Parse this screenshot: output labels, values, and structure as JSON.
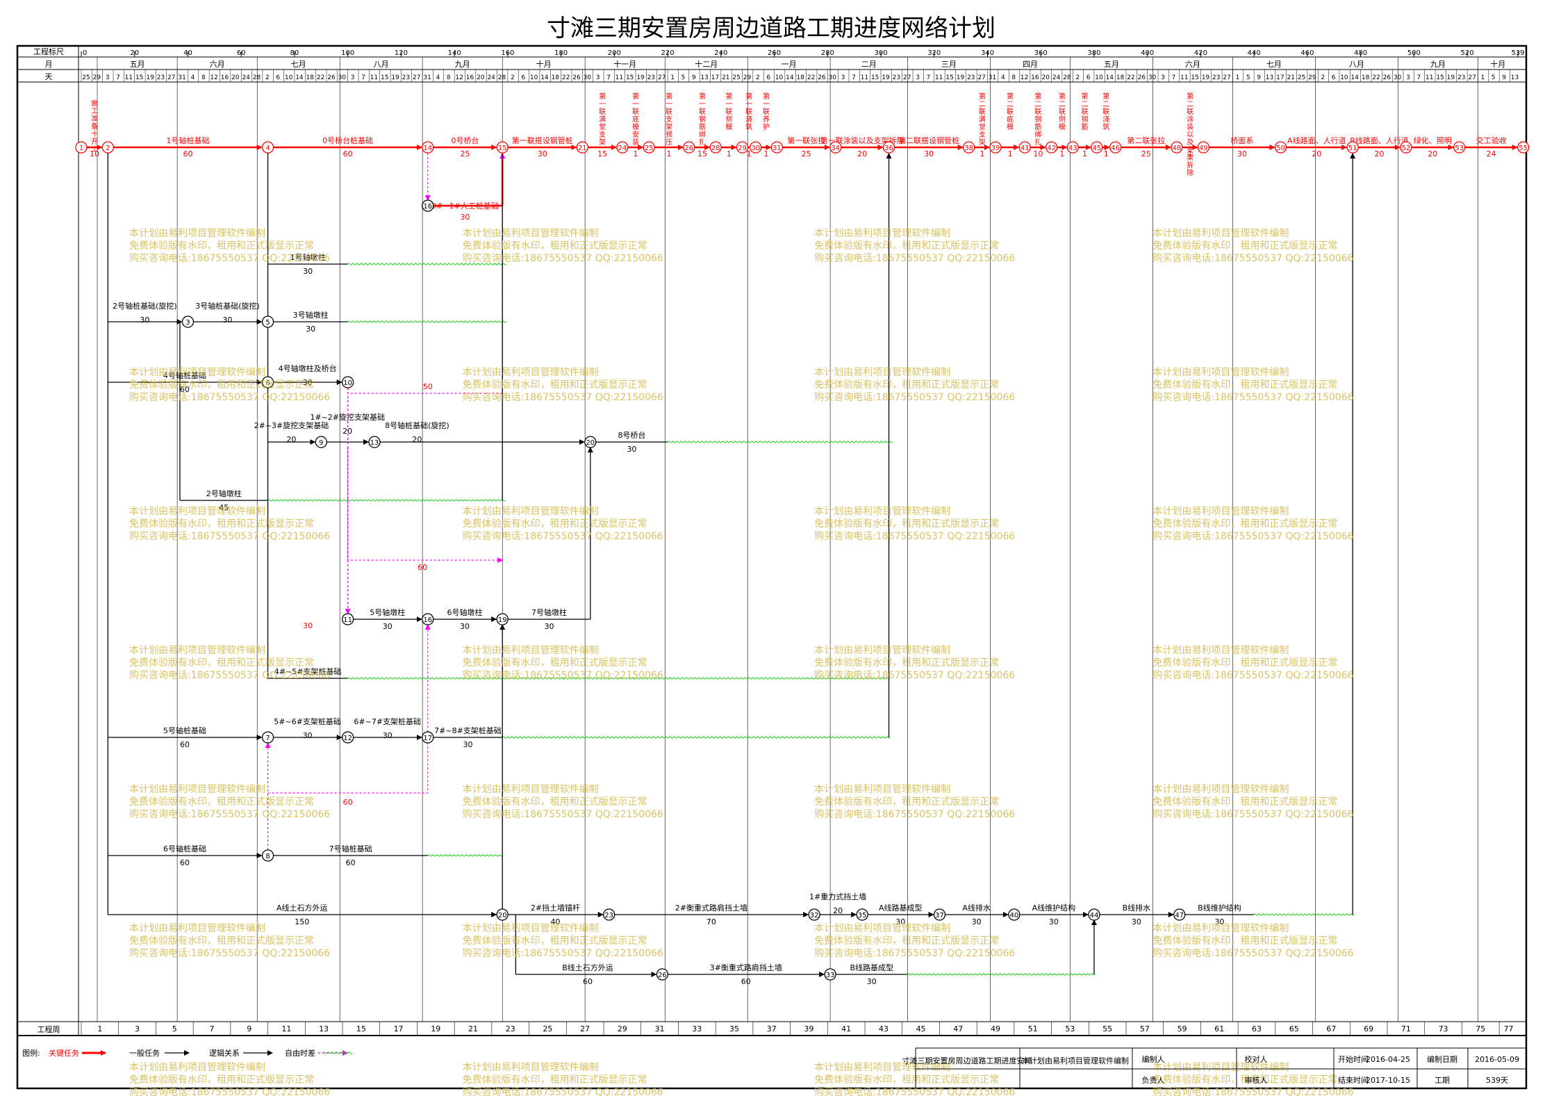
{
  "title": "寸滩三期安置房周边道路工期进度网络计划",
  "header": {
    "scale_label": "工程标尺",
    "month_label": "月",
    "day_label": "天",
    "week_label": "工程周",
    "scale_ticks": [
      "0",
      "20",
      "40",
      "60",
      "80",
      "100",
      "120",
      "140",
      "160",
      "180",
      "200",
      "220",
      "240",
      "260",
      "280",
      "300",
      "320",
      "340",
      "360",
      "380",
      "400",
      "420",
      "440",
      "460",
      "480",
      "500",
      "520",
      "539"
    ],
    "months": [
      {
        "label": "五月",
        "from": 6,
        "to": 36
      },
      {
        "label": "六月",
        "from": 36,
        "to": 66
      },
      {
        "label": "七月",
        "from": 66,
        "to": 97
      },
      {
        "label": "八月",
        "from": 97,
        "to": 128
      },
      {
        "label": "九月",
        "from": 128,
        "to": 158
      },
      {
        "label": "十月",
        "from": 158,
        "to": 189
      },
      {
        "label": "十一月",
        "from": 189,
        "to": 219
      },
      {
        "label": "十二月",
        "from": 219,
        "to": 250
      },
      {
        "label": "一月",
        "from": 250,
        "to": 281
      },
      {
        "label": "二月",
        "from": 281,
        "to": 310
      },
      {
        "label": "三月",
        "from": 310,
        "to": 341
      },
      {
        "label": "四月",
        "from": 341,
        "to": 371
      },
      {
        "label": "五月",
        "from": 371,
        "to": 402
      },
      {
        "label": "六月",
        "from": 402,
        "to": 432
      },
      {
        "label": "七月",
        "from": 432,
        "to": 463
      },
      {
        "label": "八月",
        "from": 463,
        "to": 494
      },
      {
        "label": "九月",
        "from": 494,
        "to": 524
      },
      {
        "label": "十月",
        "from": 524,
        "to": 539
      }
    ],
    "weeks": [
      "1",
      "3",
      "5",
      "7",
      "9",
      "11",
      "13",
      "15",
      "17",
      "19",
      "21",
      "23",
      "25",
      "27",
      "29",
      "31",
      "33",
      "35",
      "37",
      "39",
      "41",
      "43",
      "45",
      "47",
      "49",
      "51",
      "53",
      "55",
      "57",
      "59",
      "61",
      "63",
      "65",
      "67",
      "69",
      "71",
      "73",
      "75",
      "77"
    ]
  },
  "critical_path": [
    {
      "node": "1",
      "label": "施工准备十开工",
      "days": "10"
    },
    {
      "node": "2",
      "label": "1号轴桩基础",
      "days": "60"
    },
    {
      "node": "4",
      "label": "0号桥台桩基础",
      "days": "60"
    },
    {
      "node": "14",
      "label": "0号桥台",
      "days": "25"
    },
    {
      "node": "15",
      "label": "第一联搭设钢管桩",
      "days": "30"
    },
    {
      "node": "21",
      "label": "第一联满堂支架",
      "days": "15"
    },
    {
      "node": "24",
      "label": "第一联底模安装",
      "days": "1"
    },
    {
      "node": "25",
      "label": "第一联支架预压",
      "days": "1"
    },
    {
      "node": "26",
      "label": "第一联钢筋绑扎",
      "days": "15"
    },
    {
      "node": "28",
      "label": "第一联侧模",
      "days": "1"
    },
    {
      "node": "29",
      "label": "第一联浇筑",
      "days": "1"
    },
    {
      "node": "30",
      "label": "第一联养护",
      "days": "1"
    },
    {
      "node": "31",
      "label": "第一联张拉",
      "days": "25"
    },
    {
      "node": "34",
      "label": "第一联涂装以及支架拆除",
      "days": "20"
    },
    {
      "node": "36",
      "label": "第二联搭设钢管桩",
      "days": "30"
    },
    {
      "node": "38",
      "label": "第二联满堂支架",
      "days": "1"
    },
    {
      "node": "39",
      "label": "第二联底模",
      "days": "1"
    },
    {
      "node": "41",
      "label": "第二联钢筋绑扎",
      "days": "10"
    },
    {
      "node": "42",
      "label": "第二联侧模",
      "days": "1"
    },
    {
      "node": "43",
      "label": "第二联钢筋",
      "days": "1"
    },
    {
      "node": "45",
      "label": "第二联浇筑",
      "days": "1"
    },
    {
      "node": "46",
      "label": "第二联张拉",
      "days": "25"
    },
    {
      "node": "48",
      "label": "第二联涂装以及支架拆除",
      "days": "1"
    },
    {
      "node": "49",
      "label": "桥面系",
      "days": "30"
    },
    {
      "node": "50",
      "label": "A线路面、人行道",
      "days": "20"
    },
    {
      "node": "51",
      "label": "B线路面、人行道",
      "days": "20"
    },
    {
      "node": "52",
      "label": "绿化、照明",
      "days": "20"
    },
    {
      "node": "53",
      "label": "交工验收",
      "days": "24"
    },
    {
      "node": "55",
      "label": "",
      "days": ""
    }
  ],
  "tasks": [
    {
      "label": "0#~1#人工桩基础",
      "days": "30"
    },
    {
      "label": "1号轴墩柱",
      "days": "30"
    },
    {
      "label": "2号轴桩基础(旋挖)",
      "days": "30"
    },
    {
      "label": "3号轴桩基础(旋挖)",
      "days": "30"
    },
    {
      "label": "3号轴墩柱",
      "days": "30"
    },
    {
      "label": "4号轴桩基础",
      "days": "60"
    },
    {
      "label": "4号轴墩柱及桥台",
      "days": "30"
    },
    {
      "label": "50",
      "days": ""
    },
    {
      "label": "2#~3#旋挖支架基础",
      "days": "20"
    },
    {
      "label": "1#~2#旋挖支架基础",
      "days": "20"
    },
    {
      "label": "8号轴桩基础(旋挖)",
      "days": "20"
    },
    {
      "label": "8号桥台",
      "days": "30"
    },
    {
      "label": "2号轴墩柱",
      "days": "45"
    },
    {
      "label": "60",
      "days": ""
    },
    {
      "label": "5号轴墩柱",
      "days": "30"
    },
    {
      "label": "6号轴墩柱",
      "days": "30"
    },
    {
      "label": "7号轴墩柱",
      "days": "30"
    },
    {
      "label": "4#~5#支架桩基础",
      "days": ""
    },
    {
      "label": "5号轴桩基础",
      "days": "60"
    },
    {
      "label": "5#~6#支架桩基础",
      "days": "30"
    },
    {
      "label": "6#~7#支架桩基础",
      "days": "30"
    },
    {
      "label": "7#~8#支架桩基础",
      "days": "30"
    },
    {
      "label": "6号轴桩基础",
      "days": "60"
    },
    {
      "label": "7号轴桩基础",
      "days": "60"
    },
    {
      "label": "A线土石方外运",
      "days": "150"
    },
    {
      "label": "2#挡土墙锚杆",
      "days": "40"
    },
    {
      "label": "2#衡重式路肩挡土墙",
      "days": "70"
    },
    {
      "label": "1#重力式挡土墙",
      "days": "20"
    },
    {
      "label": "A线路基成型",
      "days": "30"
    },
    {
      "label": "A线排水",
      "days": "30"
    },
    {
      "label": "A线维护结构",
      "days": "30"
    },
    {
      "label": "B线排水",
      "days": "30"
    },
    {
      "label": "B线维护结构",
      "days": "30"
    },
    {
      "label": "B线土石方外运",
      "days": "60"
    },
    {
      "label": "3#衡重式路肩挡土墙",
      "days": "60"
    },
    {
      "label": "B线路基成型",
      "days": "30"
    }
  ],
  "watermark": {
    "line1": "本计划由易利项目管理软件编制",
    "line2": "免费体验版有水印，租用和正式版显示正常",
    "line3": "购买咨询电话:18675550537 QQ:22150066",
    "color": "#d4b84a"
  },
  "legend": {
    "title": "图例:",
    "critical": "关键任务",
    "normal": "一般任务",
    "logic": "逻辑关系",
    "free": "自由时差",
    "critical_color": "#ff0000",
    "free_color": "#ff00ff",
    "float_color": "#00cc00"
  },
  "footer": {
    "project_name": "寸滩三期安置房周边道路工期进度安排",
    "software": "本计划由易利项目管理软件编制",
    "prepared_by_label": "编制人",
    "prepared_by": "",
    "responsible_label": "负责人",
    "responsible": "",
    "checked_by_label": "校对人",
    "checked_by": "",
    "reviewed_by_label": "审核人",
    "reviewed_by": "",
    "start_label": "开始时间",
    "start_date": "2016-04-25",
    "edit_label": "编制日期",
    "edit_date": "2016-05-09",
    "end_label": "结束时间",
    "end_date": "2017-10-15",
    "duration_label": "工期",
    "duration": "539天"
  }
}
